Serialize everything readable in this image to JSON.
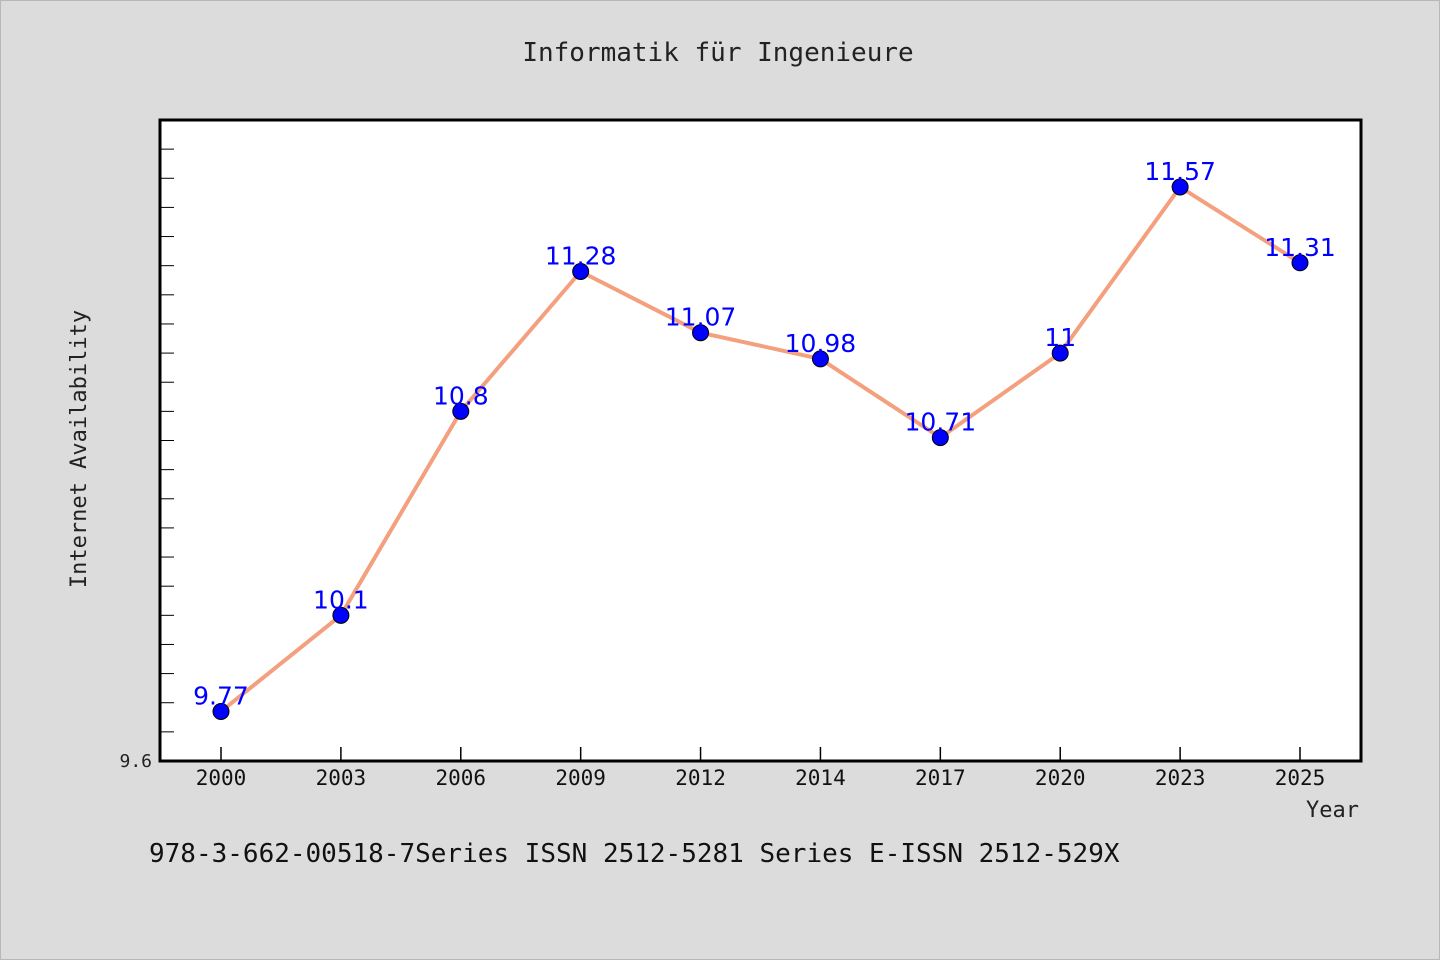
{
  "chart_data": {
    "type": "line",
    "title": "Informatik für Ingenieure",
    "xlabel": "Year",
    "ylabel": "Internet Availability",
    "categories": [
      "2000",
      "2003",
      "2006",
      "2009",
      "2012",
      "2014",
      "2017",
      "2020",
      "2023",
      "2025"
    ],
    "series": [
      {
        "values": [
          9.77,
          10.1,
          10.8,
          11.28,
          11.07,
          10.98,
          10.71,
          11,
          11.57,
          11.31
        ],
        "data_labels": [
          "9.77",
          "10.1",
          "10.8",
          "11.28",
          "11.07",
          "10.98",
          "10.71",
          "11",
          "11.57",
          "11.31"
        ]
      }
    ],
    "ylim": [
      9.6,
      11.8
    ],
    "yticks_labeled": [
      "9.6"
    ],
    "grid": false,
    "legend": "none",
    "colors": {
      "line": "#f4a07e",
      "marker": "#0000ff",
      "label": "#0000ff",
      "plot_bg": "#ffffff",
      "page_bg": "#dcdcdc"
    }
  },
  "footer": {
    "text": "978-3-662-00518-7Series ISSN 2512-5281 Series E-ISSN 2512-529X"
  }
}
